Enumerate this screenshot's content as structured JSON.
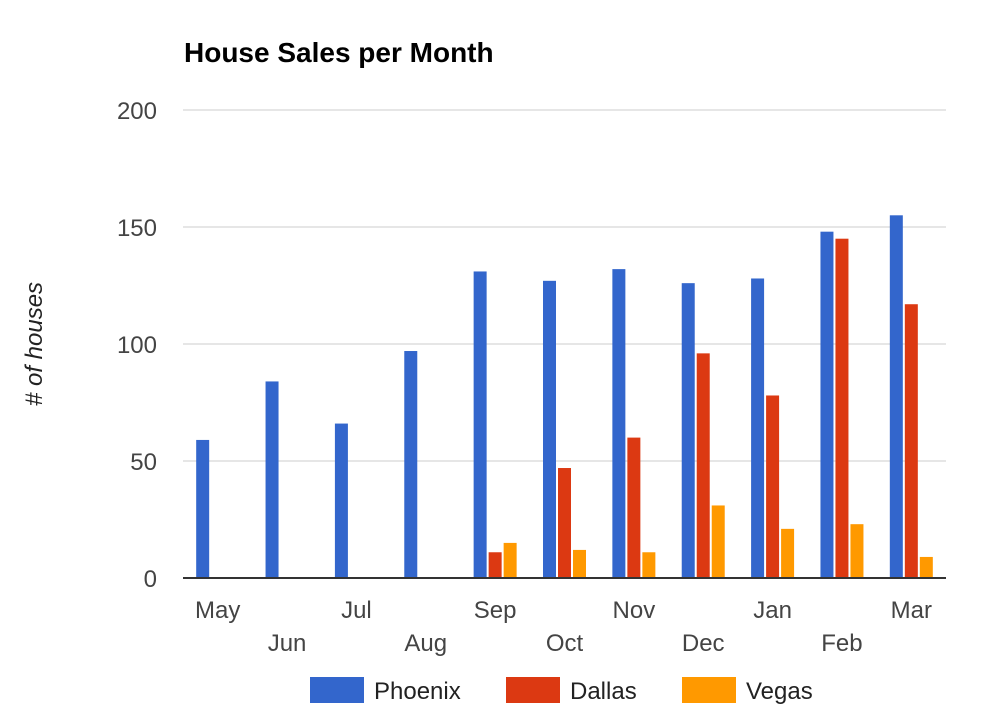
{
  "chart_data": {
    "type": "bar",
    "title": "House Sales per Month",
    "xlabel": "",
    "ylabel": "# of houses",
    "ylim": [
      0,
      200
    ],
    "yticks": [
      0,
      50,
      100,
      150,
      200
    ],
    "grid": true,
    "legend_position": "bottom",
    "categories": [
      "May",
      "Jun",
      "Jul",
      "Aug",
      "Sep",
      "Oct",
      "Nov",
      "Dec",
      "Jan",
      "Feb",
      "Mar"
    ],
    "series": [
      {
        "name": "Phoenix",
        "color": "#3366cc",
        "values": [
          59,
          84,
          66,
          97,
          131,
          127,
          132,
          126,
          128,
          148,
          155
        ]
      },
      {
        "name": "Dallas",
        "color": "#dc3912",
        "values": [
          0,
          0,
          0,
          0,
          11,
          47,
          60,
          96,
          78,
          145,
          117
        ]
      },
      {
        "name": "Vegas",
        "color": "#ff9900",
        "values": [
          0,
          0,
          0,
          0,
          15,
          12,
          11,
          31,
          21,
          23,
          9
        ]
      }
    ]
  }
}
